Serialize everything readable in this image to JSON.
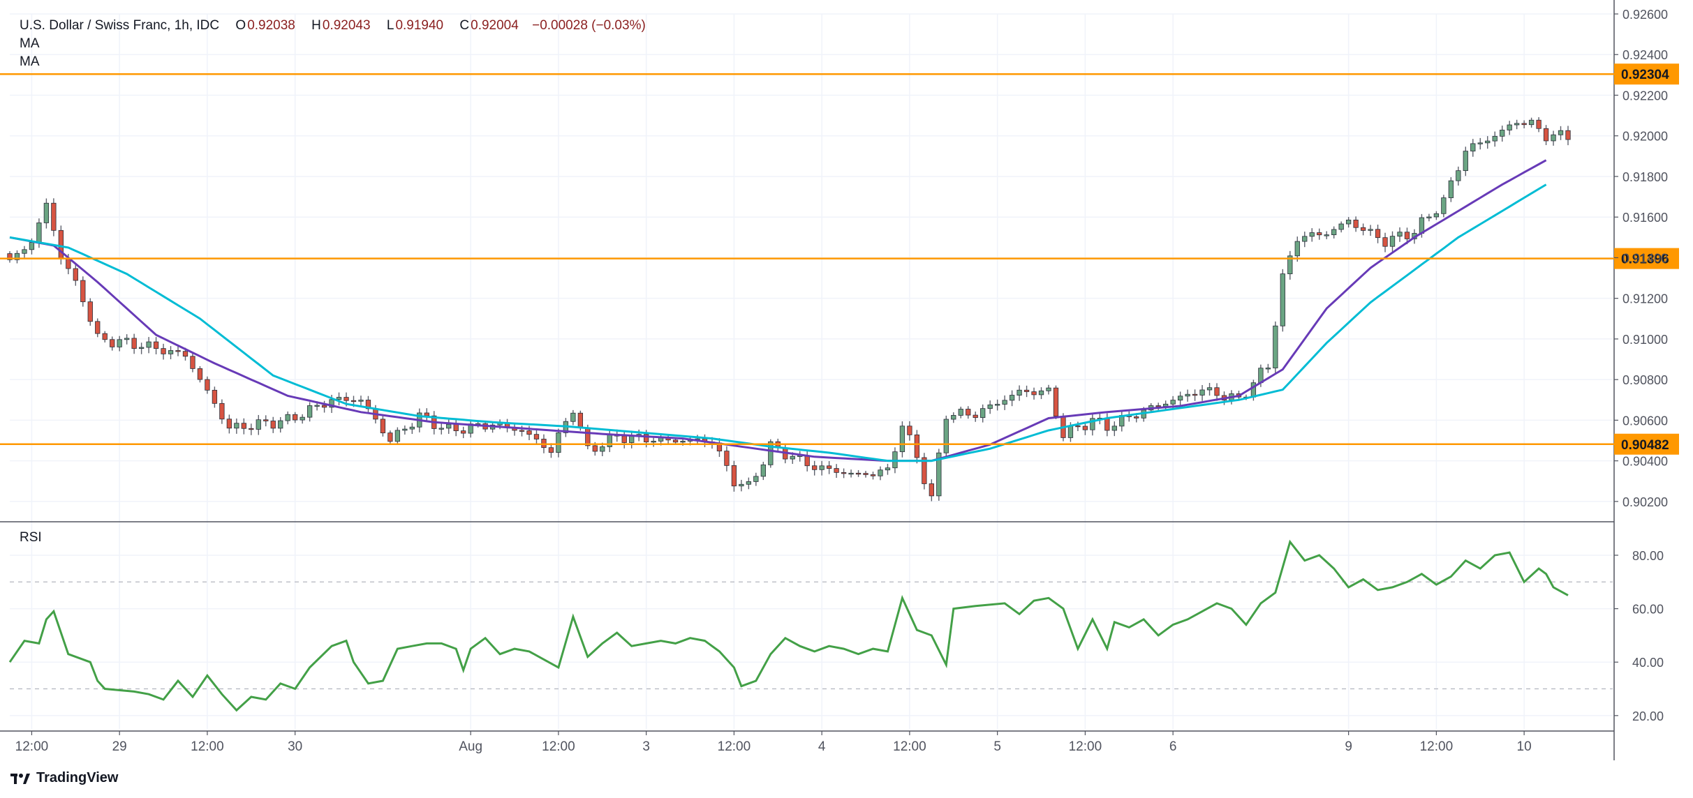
{
  "header": {
    "symbol": "U.S. Dollar / Swiss Franc, 1h, IDC",
    "open_label": "O",
    "open": "0.92038",
    "high_label": "H",
    "high": "0.92043",
    "low_label": "L",
    "low": "0.91940",
    "close_label": "C",
    "close": "0.92004",
    "change": "−0.00028 (−0.03%)",
    "ma1": "MA",
    "ma2": "MA"
  },
  "rsi_panel": {
    "label": "RSI"
  },
  "brand": {
    "name": "TradingView"
  },
  "colors": {
    "up": "#6ba583",
    "down": "#d75442",
    "wick": "#5d606b",
    "ma_fast": "#673ab7",
    "ma_slow": "#00bcd4",
    "level": "#ff9800",
    "rsi": "#43a047",
    "grid": "#f0f3fa",
    "axis": "#50535e"
  },
  "chart_data": [
    {
      "type": "candlestick",
      "ylim": [
        0.901,
        0.926
      ],
      "y_ticks": [
        "0.92600",
        "0.92400",
        "0.92200",
        "0.92000",
        "0.91800",
        "0.91600",
        "0.91400",
        "0.91200",
        "0.91000",
        "0.90800",
        "0.90600",
        "0.90400",
        "0.90200"
      ],
      "y_tick_values": [
        0.926,
        0.924,
        0.922,
        0.92,
        0.918,
        0.916,
        0.914,
        0.912,
        0.91,
        0.908,
        0.906,
        0.904,
        0.902
      ],
      "x_ticks": [
        {
          "label": "12:00",
          "index": 3
        },
        {
          "label": "29",
          "index": 15
        },
        {
          "label": "12:00",
          "index": 27
        },
        {
          "label": "30",
          "index": 39
        },
        {
          "label": "Aug",
          "index": 63
        },
        {
          "label": "12:00",
          "index": 75
        },
        {
          "label": "3",
          "index": 87
        },
        {
          "label": "12:00",
          "index": 99
        },
        {
          "label": "4",
          "index": 111
        },
        {
          "label": "12:00",
          "index": 123
        },
        {
          "label": "5",
          "index": 135
        },
        {
          "label": "12:00",
          "index": 147
        },
        {
          "label": "6",
          "index": 159
        },
        {
          "label": "9",
          "index": 183
        },
        {
          "label": "12:00",
          "index": 195
        },
        {
          "label": "10",
          "index": 207
        }
      ],
      "levels": [
        {
          "value": 0.92304,
          "label": "0.92304"
        },
        {
          "value": 0.91396,
          "label": "0.91396"
        },
        {
          "value": 0.90482,
          "label": "0.90482"
        }
      ],
      "close_points": [
        [
          0,
          0.9138
        ],
        [
          3,
          0.9148
        ],
        [
          5,
          0.9166
        ],
        [
          7,
          0.9141
        ],
        [
          10,
          0.912
        ],
        [
          12,
          0.91
        ],
        [
          18,
          0.9097
        ],
        [
          24,
          0.9092
        ],
        [
          30,
          0.9056
        ],
        [
          38,
          0.906
        ],
        [
          44,
          0.907
        ],
        [
          48,
          0.907
        ],
        [
          52,
          0.905
        ],
        [
          56,
          0.9062
        ],
        [
          60,
          0.9055
        ],
        [
          66,
          0.9058
        ],
        [
          70,
          0.9055
        ],
        [
          74,
          0.9045
        ],
        [
          77,
          0.9066
        ],
        [
          79,
          0.9045
        ],
        [
          83,
          0.9052
        ],
        [
          90,
          0.905
        ],
        [
          96,
          0.905
        ],
        [
          99,
          0.903
        ],
        [
          101,
          0.9027
        ],
        [
          104,
          0.9047
        ],
        [
          110,
          0.9037
        ],
        [
          116,
          0.9033
        ],
        [
          120,
          0.9035
        ],
        [
          122,
          0.9058
        ],
        [
          124,
          0.9042
        ],
        [
          126,
          0.9021
        ],
        [
          128,
          0.9063
        ],
        [
          132,
          0.9063
        ],
        [
          138,
          0.9074
        ],
        [
          142,
          0.9074
        ],
        [
          144,
          0.9053
        ],
        [
          148,
          0.906
        ],
        [
          150,
          0.9057
        ],
        [
          156,
          0.9066
        ],
        [
          163,
          0.9075
        ],
        [
          168,
          0.907
        ],
        [
          172,
          0.9087
        ],
        [
          174,
          0.913
        ],
        [
          176,
          0.915
        ],
        [
          180,
          0.9152
        ],
        [
          183,
          0.9158
        ],
        [
          188,
          0.9148
        ],
        [
          192,
          0.9153
        ],
        [
          196,
          0.9168
        ],
        [
          199,
          0.9193
        ],
        [
          203,
          0.92
        ],
        [
          206,
          0.9207
        ],
        [
          208,
          0.9206
        ],
        [
          210,
          0.92
        ]
      ],
      "series": [
        {
          "name": "MA",
          "points": [
            [
              0,
              0.915
            ],
            [
              6,
              0.9146
            ],
            [
              12,
              0.9128
            ],
            [
              20,
              0.9102
            ],
            [
              28,
              0.9088
            ],
            [
              38,
              0.9072
            ],
            [
              48,
              0.9064
            ],
            [
              58,
              0.9059
            ],
            [
              70,
              0.9056
            ],
            [
              82,
              0.9053
            ],
            [
              92,
              0.9051
            ],
            [
              100,
              0.9047
            ],
            [
              110,
              0.9042
            ],
            [
              120,
              0.904
            ],
            [
              126,
              0.904
            ],
            [
              134,
              0.9048
            ],
            [
              142,
              0.9061
            ],
            [
              150,
              0.9064
            ],
            [
              160,
              0.9067
            ],
            [
              168,
              0.9072
            ],
            [
              174,
              0.9085
            ],
            [
              180,
              0.9115
            ],
            [
              186,
              0.9135
            ],
            [
              192,
              0.915
            ],
            [
              198,
              0.9163
            ],
            [
              204,
              0.9176
            ],
            [
              210,
              0.9188
            ]
          ]
        },
        {
          "name": "MA",
          "points": [
            [
              0,
              0.915
            ],
            [
              8,
              0.9145
            ],
            [
              16,
              0.9132
            ],
            [
              26,
              0.911
            ],
            [
              36,
              0.9082
            ],
            [
              46,
              0.9068
            ],
            [
              56,
              0.9062
            ],
            [
              66,
              0.9059
            ],
            [
              76,
              0.9057
            ],
            [
              86,
              0.9054
            ],
            [
              96,
              0.9051
            ],
            [
              104,
              0.9047
            ],
            [
              112,
              0.9044
            ],
            [
              120,
              0.904
            ],
            [
              126,
              0.904
            ],
            [
              134,
              0.9046
            ],
            [
              142,
              0.9055
            ],
            [
              150,
              0.9061
            ],
            [
              160,
              0.9066
            ],
            [
              168,
              0.907
            ],
            [
              174,
              0.9075
            ],
            [
              180,
              0.9098
            ],
            [
              186,
              0.9118
            ],
            [
              192,
              0.9134
            ],
            [
              198,
              0.915
            ],
            [
              204,
              0.9163
            ],
            [
              210,
              0.9176
            ]
          ]
        }
      ]
    },
    {
      "type": "line",
      "title": "RSI",
      "ylim": [
        15,
        92
      ],
      "y_ticks": [
        "80.00",
        "60.00",
        "40.00",
        "20.00"
      ],
      "y_tick_values": [
        80,
        60,
        40,
        20
      ],
      "bands": [
        70,
        30
      ],
      "series": [
        {
          "points": [
            [
              0,
              40
            ],
            [
              2,
              48
            ],
            [
              4,
              47
            ],
            [
              5,
              56
            ],
            [
              6,
              59
            ],
            [
              8,
              43
            ],
            [
              11,
              40
            ],
            [
              12,
              33
            ],
            [
              13,
              30
            ],
            [
              17,
              29
            ],
            [
              19,
              28
            ],
            [
              21,
              26
            ],
            [
              23,
              33
            ],
            [
              25,
              27
            ],
            [
              27,
              35
            ],
            [
              29,
              28
            ],
            [
              31,
              22
            ],
            [
              33,
              27
            ],
            [
              35,
              26
            ],
            [
              37,
              32
            ],
            [
              39,
              30
            ],
            [
              41,
              38
            ],
            [
              44,
              46
            ],
            [
              46,
              48
            ],
            [
              47,
              40
            ],
            [
              49,
              32
            ],
            [
              51,
              33
            ],
            [
              53,
              45
            ],
            [
              55,
              46
            ],
            [
              57,
              47
            ],
            [
              59,
              47
            ],
            [
              61,
              45
            ],
            [
              62,
              37
            ],
            [
              63,
              45
            ],
            [
              65,
              49
            ],
            [
              67,
              43
            ],
            [
              69,
              45
            ],
            [
              71,
              44
            ],
            [
              73,
              41
            ],
            [
              75,
              38
            ],
            [
              77,
              57
            ],
            [
              79,
              42
            ],
            [
              81,
              47
            ],
            [
              83,
              51
            ],
            [
              85,
              46
            ],
            [
              87,
              47
            ],
            [
              89,
              48
            ],
            [
              91,
              47
            ],
            [
              93,
              49
            ],
            [
              95,
              48
            ],
            [
              97,
              44
            ],
            [
              99,
              38
            ],
            [
              100,
              31
            ],
            [
              102,
              33
            ],
            [
              104,
              43
            ],
            [
              106,
              49
            ],
            [
              108,
              46
            ],
            [
              110,
              44
            ],
            [
              112,
              46
            ],
            [
              114,
              45
            ],
            [
              116,
              43
            ],
            [
              118,
              45
            ],
            [
              120,
              44
            ],
            [
              122,
              64
            ],
            [
              124,
              52
            ],
            [
              126,
              50
            ],
            [
              128,
              39
            ],
            [
              129,
              60
            ],
            [
              132,
              61
            ],
            [
              136,
              62
            ],
            [
              138,
              58
            ],
            [
              140,
              63
            ],
            [
              142,
              64
            ],
            [
              144,
              60
            ],
            [
              146,
              45
            ],
            [
              148,
              56
            ],
            [
              150,
              45
            ],
            [
              151,
              55
            ],
            [
              153,
              53
            ],
            [
              155,
              56
            ],
            [
              157,
              50
            ],
            [
              159,
              54
            ],
            [
              161,
              56
            ],
            [
              163,
              59
            ],
            [
              165,
              62
            ],
            [
              167,
              60
            ],
            [
              169,
              54
            ],
            [
              171,
              62
            ],
            [
              173,
              66
            ],
            [
              175,
              85
            ],
            [
              177,
              78
            ],
            [
              179,
              80
            ],
            [
              181,
              75
            ],
            [
              183,
              68
            ],
            [
              185,
              71
            ],
            [
              187,
              67
            ],
            [
              189,
              68
            ],
            [
              191,
              70
            ],
            [
              193,
              73
            ],
            [
              195,
              69
            ],
            [
              197,
              72
            ],
            [
              199,
              78
            ],
            [
              201,
              75
            ],
            [
              203,
              80
            ],
            [
              205,
              81
            ],
            [
              207,
              70
            ],
            [
              209,
              75
            ],
            [
              210,
              73
            ],
            [
              211,
              68
            ],
            [
              213,
              65
            ]
          ]
        }
      ]
    }
  ]
}
